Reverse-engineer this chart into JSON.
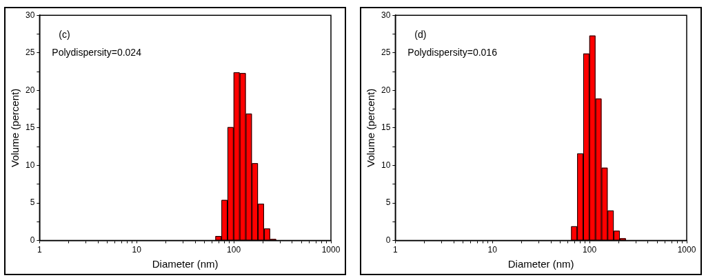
{
  "chart_data": [
    {
      "type": "histogram",
      "xlabel": "Diameter (nm)",
      "ylabel": "Volume (percent)",
      "annotations": [
        "(c)",
        "Polydispersity=0.024"
      ],
      "log": "x",
      "color": "#ff0000",
      "bins": [
        64.6,
        74.6,
        86.1,
        99.5,
        115,
        132.8,
        153.4,
        177.2,
        204.7,
        236.4,
        273
      ],
      "values": [
        0.6,
        5.4,
        15.1,
        22.4,
        22.3,
        16.9,
        10.3,
        4.9,
        1.6,
        0.2
      ],
      "xlim": [
        1,
        1000
      ],
      "ylim": [
        0,
        30
      ],
      "xticks": [
        1,
        {
          "value": 2,
          "label": null
        },
        {
          "value": 3,
          "label": null
        },
        {
          "value": 4,
          "label": null
        },
        {
          "value": 5,
          "label": null
        },
        {
          "value": 6,
          "label": null
        },
        {
          "value": 7,
          "label": null
        },
        {
          "value": 8,
          "label": null
        },
        {
          "value": 9,
          "label": null
        },
        10,
        {
          "value": 20,
          "label": null
        },
        {
          "value": 30,
          "label": null
        },
        {
          "value": 40,
          "label": null
        },
        {
          "value": 50,
          "label": null
        },
        {
          "value": 60,
          "label": null
        },
        {
          "value": 70,
          "label": null
        },
        {
          "value": 80,
          "label": null
        },
        {
          "value": 90,
          "label": null
        },
        100,
        {
          "value": 200,
          "label": null
        },
        {
          "value": 300,
          "label": null
        },
        {
          "value": 400,
          "label": null
        },
        {
          "value": 500,
          "label": null
        },
        {
          "value": 600,
          "label": null
        },
        {
          "value": 700,
          "label": null
        },
        {
          "value": 800,
          "label": null
        },
        {
          "value": 900,
          "label": null
        },
        1000
      ],
      "yticks": [
        0,
        {
          "value": 2.5,
          "label": null
        },
        5,
        {
          "value": 7.5,
          "label": null
        },
        10,
        {
          "value": 12.5,
          "label": null
        },
        15,
        {
          "value": 17.5,
          "label": null
        },
        20,
        {
          "value": 22.5,
          "label": null
        },
        25,
        {
          "value": 27.5,
          "label": null
        },
        30
      ]
    },
    {
      "type": "histogram",
      "xlabel": "Diameter (nm)",
      "ylabel": "Volume (percent)",
      "annotations": [
        "(d)",
        "Polydispersity=0.016"
      ],
      "log": "x",
      "color": "#ff0000",
      "bins": [
        64.6,
        74.6,
        86.1,
        99.5,
        115,
        132.8,
        153.4,
        177.2,
        204.7,
        236.4
      ],
      "values": [
        1.9,
        11.6,
        24.9,
        27.3,
        18.9,
        9.7,
        4.0,
        1.3,
        0.3
      ],
      "xlim": [
        1,
        1000
      ],
      "ylim": [
        0,
        30
      ],
      "xticks": [
        1,
        {
          "value": 2,
          "label": null
        },
        {
          "value": 3,
          "label": null
        },
        {
          "value": 4,
          "label": null
        },
        {
          "value": 5,
          "label": null
        },
        {
          "value": 6,
          "label": null
        },
        {
          "value": 7,
          "label": null
        },
        {
          "value": 8,
          "label": null
        },
        {
          "value": 9,
          "label": null
        },
        10,
        {
          "value": 20,
          "label": null
        },
        {
          "value": 30,
          "label": null
        },
        {
          "value": 40,
          "label": null
        },
        {
          "value": 50,
          "label": null
        },
        {
          "value": 60,
          "label": null
        },
        {
          "value": 70,
          "label": null
        },
        {
          "value": 80,
          "label": null
        },
        {
          "value": 90,
          "label": null
        },
        100,
        {
          "value": 200,
          "label": null
        },
        {
          "value": 300,
          "label": null
        },
        {
          "value": 400,
          "label": null
        },
        {
          "value": 500,
          "label": null
        },
        {
          "value": 600,
          "label": null
        },
        {
          "value": 700,
          "label": null
        },
        {
          "value": 800,
          "label": null
        },
        {
          "value": 900,
          "label": null
        },
        1000
      ],
      "yticks": [
        0,
        {
          "value": 2.5,
          "label": null
        },
        5,
        {
          "value": 7.5,
          "label": null
        },
        10,
        {
          "value": 12.5,
          "label": null
        },
        15,
        {
          "value": 17.5,
          "label": null
        },
        20,
        {
          "value": 22.5,
          "label": null
        },
        25,
        {
          "value": 27.5,
          "label": null
        },
        30
      ]
    }
  ]
}
